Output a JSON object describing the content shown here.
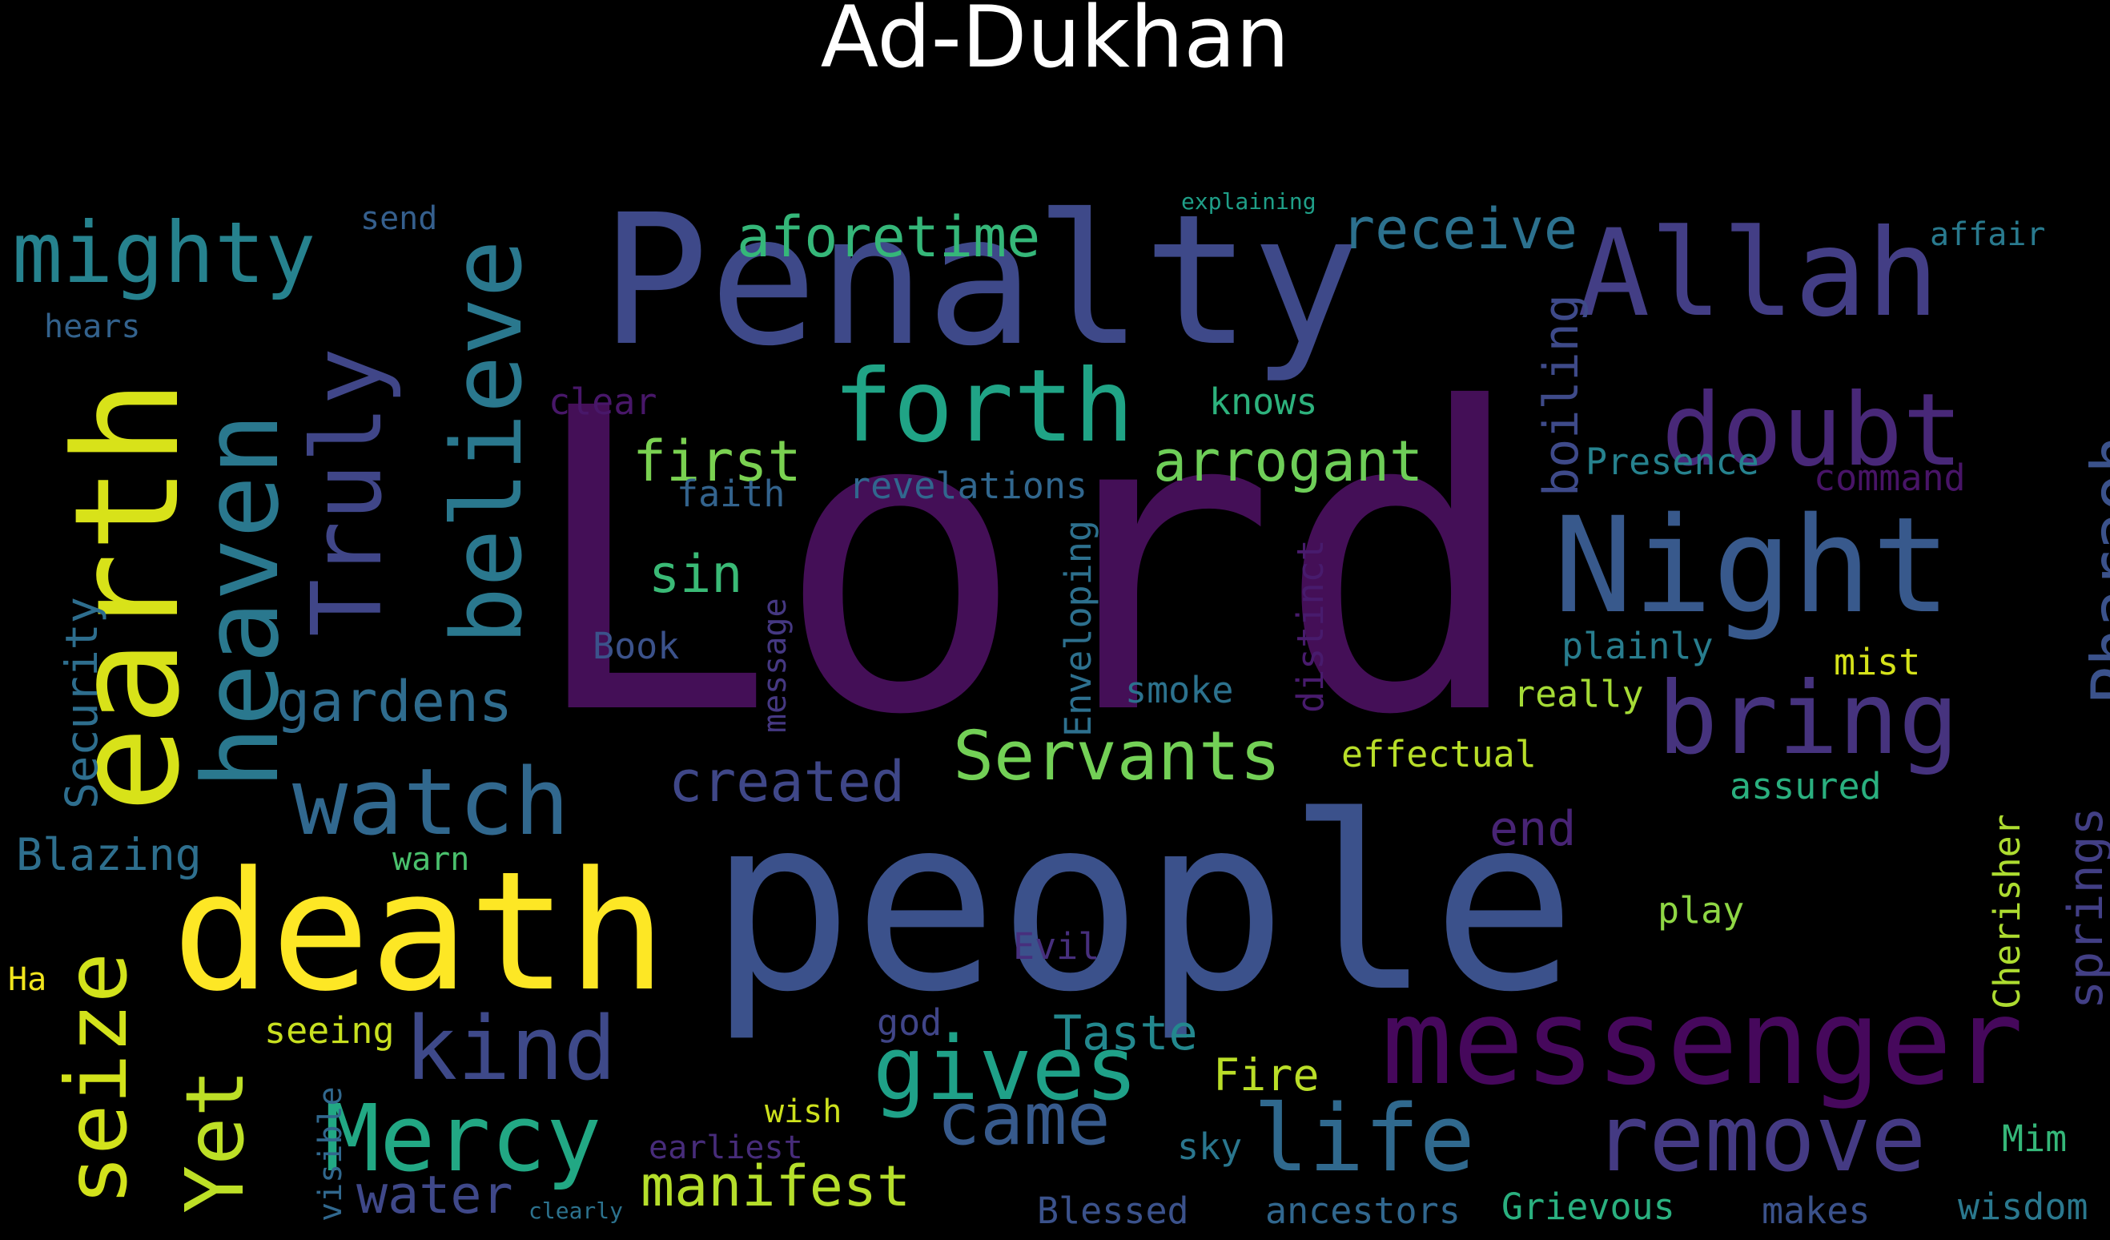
{
  "title": "Ad-Dukhan",
  "background_color": "#000000",
  "title_color": "#ffffff",
  "words": [
    {
      "text": "Lord",
      "color": "#440f57"
    },
    {
      "text": "people",
      "color": "#3b518b"
    },
    {
      "text": "Penalty",
      "color": "#3e4989"
    },
    {
      "text": "death",
      "color": "#fde725"
    },
    {
      "text": "earth",
      "color": "#d8e219"
    },
    {
      "text": "Night",
      "color": "#38598c"
    },
    {
      "text": "messenger",
      "color": "#46085c"
    },
    {
      "text": "Allah",
      "color": "#433e85"
    },
    {
      "text": "heaven",
      "color": "#2a788e"
    },
    {
      "text": "Truly",
      "color": "#404688"
    },
    {
      "text": "believe",
      "color": "#2a788e"
    },
    {
      "text": "forth",
      "color": "#20a486"
    },
    {
      "text": "doubt",
      "color": "#482878"
    },
    {
      "text": "bring",
      "color": "#46337e"
    },
    {
      "text": "watch",
      "color": "#31688e"
    },
    {
      "text": "mighty",
      "color": "#26828e"
    },
    {
      "text": "kind",
      "color": "#3e4989"
    },
    {
      "text": "Mercy",
      "color": "#22a884"
    },
    {
      "text": "life",
      "color": "#30698e"
    },
    {
      "text": "remove",
      "color": "#443a83"
    },
    {
      "text": "gives",
      "color": "#1fa188"
    },
    {
      "text": "seize",
      "color": "#d2e21b"
    },
    {
      "text": "Yet",
      "color": "#bddf26"
    },
    {
      "text": "came",
      "color": "#375a8c"
    },
    {
      "text": "Pharaoh",
      "color": "#3b528b"
    },
    {
      "text": "Servants",
      "color": "#73d056"
    },
    {
      "text": "aforetime",
      "color": "#35b779"
    },
    {
      "text": "receive",
      "color": "#2c718e"
    },
    {
      "text": "arrogant",
      "color": "#6ece58"
    },
    {
      "text": "first",
      "color": "#7ad151"
    },
    {
      "text": "gardens",
      "color": "#2f6c8e"
    },
    {
      "text": "created",
      "color": "#3f4788"
    },
    {
      "text": "manifest",
      "color": "#b5de2b"
    },
    {
      "text": "water",
      "color": "#3f4889"
    },
    {
      "text": "sin",
      "color": "#3aba76"
    },
    {
      "text": "boiling",
      "color": "#3e4a89"
    },
    {
      "text": "springs",
      "color": "#423f85"
    },
    {
      "text": "end",
      "color": "#482475"
    },
    {
      "text": "Taste",
      "color": "#23888e"
    },
    {
      "text": "Fire",
      "color": "#bade28"
    },
    {
      "text": "Blazing",
      "color": "#2e6f8e"
    },
    {
      "text": "Security",
      "color": "#2e6e8e"
    },
    {
      "text": "Enveloping",
      "color": "#2d708e"
    },
    {
      "text": "Cherisher",
      "color": "#addc30"
    },
    {
      "text": "revelations",
      "color": "#31678e"
    },
    {
      "text": "faith",
      "color": "#33638d"
    },
    {
      "text": "Book",
      "color": "#3b528b"
    },
    {
      "text": "message",
      "color": "#453882"
    },
    {
      "text": "distinct",
      "color": "#481b6d"
    },
    {
      "text": "smoke",
      "color": "#2c728e"
    },
    {
      "text": "plainly",
      "color": "#287d8e"
    },
    {
      "text": "really",
      "color": "#a5db36"
    },
    {
      "text": "mist",
      "color": "#d5e21a"
    },
    {
      "text": "effectual",
      "color": "#b8de29"
    },
    {
      "text": "assured",
      "color": "#2ab07f"
    },
    {
      "text": "Presence",
      "color": "#26828e"
    },
    {
      "text": "command",
      "color": "#481467"
    },
    {
      "text": "knows",
      "color": "#2db27d"
    },
    {
      "text": "clear",
      "color": "#481769"
    },
    {
      "text": "send",
      "color": "#355f8d"
    },
    {
      "text": "hears",
      "color": "#33628d"
    },
    {
      "text": "affair",
      "color": "#297a8e"
    },
    {
      "text": "explaining",
      "color": "#1f9f88"
    },
    {
      "text": "warn",
      "color": "#4ac16d"
    },
    {
      "text": "Ha",
      "color": "#f1e51d"
    },
    {
      "text": "seeing",
      "color": "#c8e020"
    },
    {
      "text": "visible",
      "color": "#31688e"
    },
    {
      "text": "wish",
      "color": "#cde11d"
    },
    {
      "text": "earliest",
      "color": "#472c7a"
    },
    {
      "text": "clearly",
      "color": "#2c728e"
    },
    {
      "text": "Evil",
      "color": "#472f7d"
    },
    {
      "text": "god",
      "color": "#404588"
    },
    {
      "text": "sky",
      "color": "#2a768e"
    },
    {
      "text": "Blessed",
      "color": "#3b528b"
    },
    {
      "text": "ancestors",
      "color": "#31678e"
    },
    {
      "text": "Grievous",
      "color": "#2ab07f"
    },
    {
      "text": "makes",
      "color": "#3b528b"
    },
    {
      "text": "wisdom",
      "color": "#2a788e"
    },
    {
      "text": "Mim",
      "color": "#35b779"
    },
    {
      "text": "play",
      "color": "#8fd744"
    }
  ]
}
